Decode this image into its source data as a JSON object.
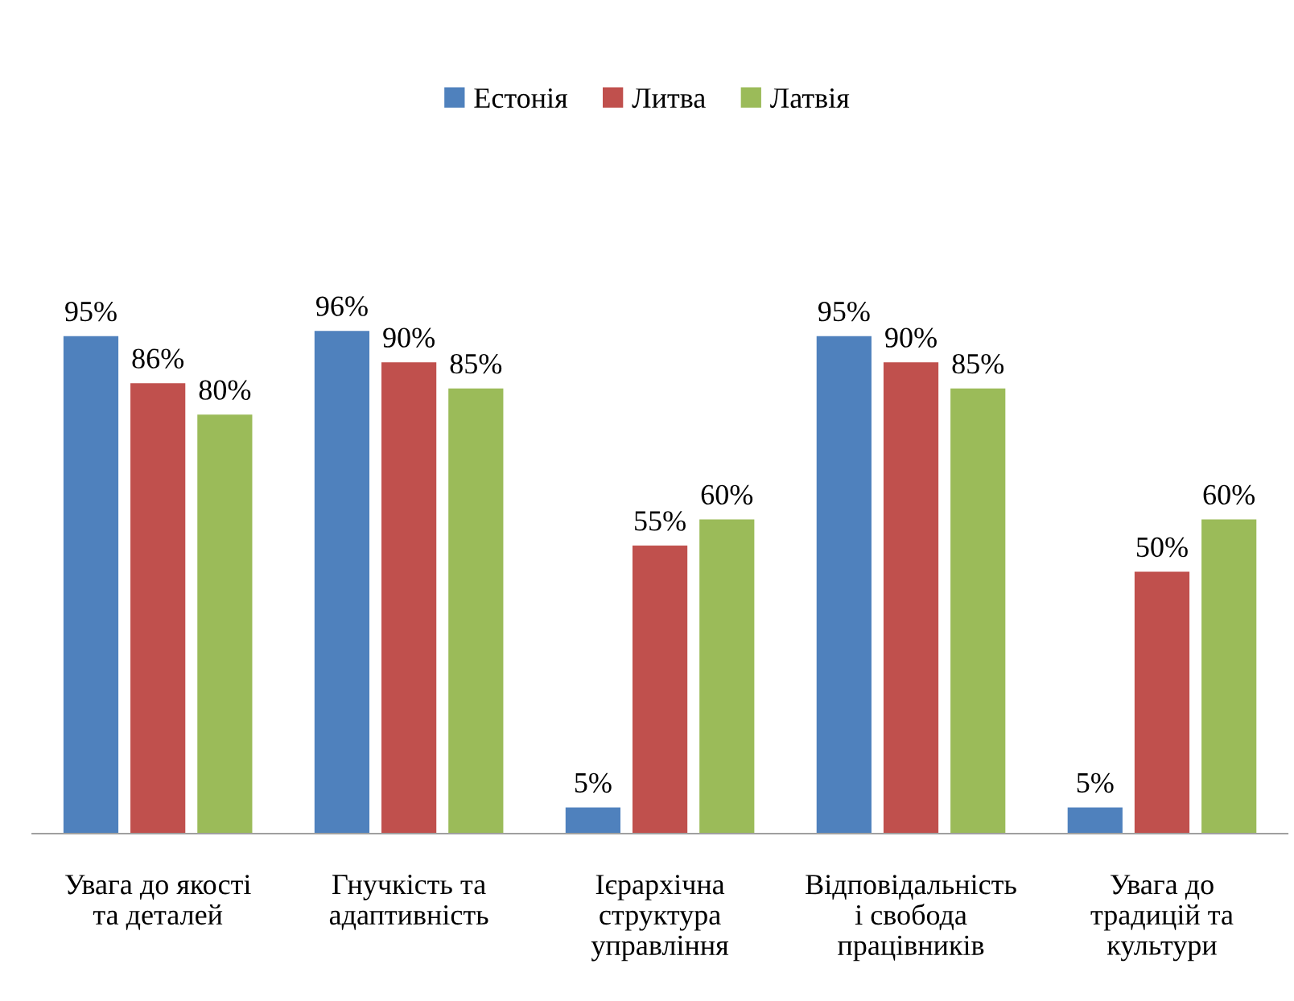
{
  "chart_data": {
    "type": "bar",
    "categories": [
      "Увага до якості\nта деталей",
      "Гнучкість та\nадаптивність",
      "Ієрархічна\nструктура\nуправління",
      "Відповідальність\nі свобода\nпрацівників",
      "Увага до\nтрадицій та\nкультури"
    ],
    "series": [
      {
        "name": "Естонія",
        "color": "#4f81bd",
        "values": [
          95,
          96,
          5,
          95,
          5
        ],
        "value_labels": [
          "95%",
          "96%",
          "5%",
          "95%",
          "5%"
        ]
      },
      {
        "name": "Литва",
        "color": "#c0504d",
        "values": [
          86,
          90,
          55,
          90,
          50
        ],
        "value_labels": [
          "86%",
          "90%",
          "55%",
          "90%",
          "50%"
        ]
      },
      {
        "name": "Латвія",
        "color": "#9bbb59",
        "values": [
          80,
          85,
          60,
          85,
          60
        ],
        "value_labels": [
          "80%",
          "85%",
          "60%",
          "85%",
          "60%"
        ]
      }
    ],
    "legend": "top",
    "grid": false
  }
}
